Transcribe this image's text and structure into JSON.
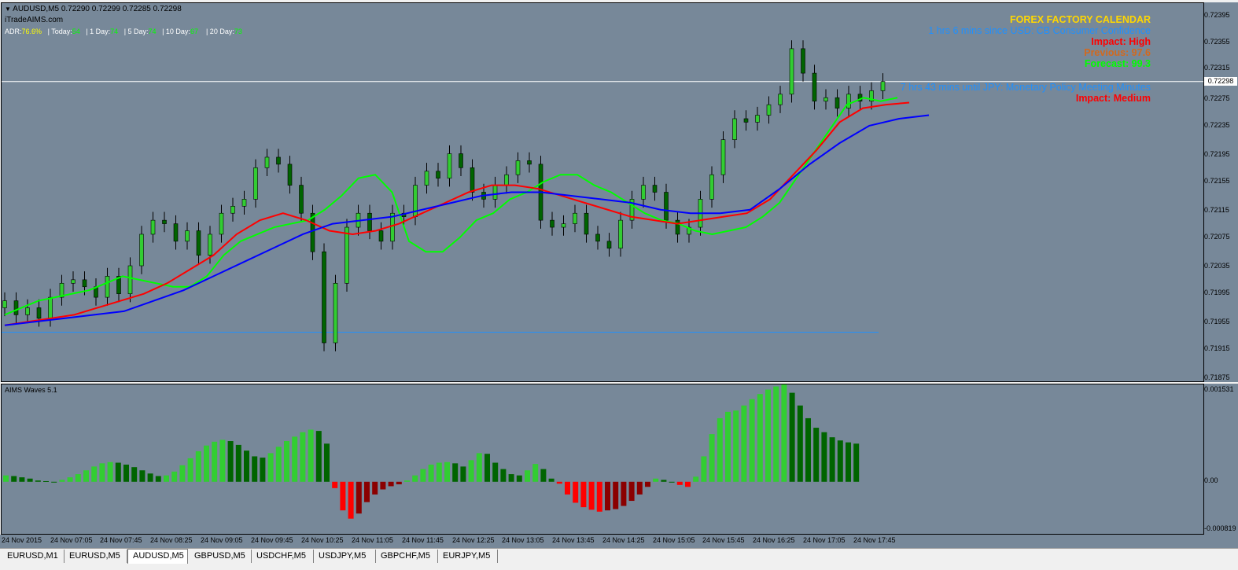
{
  "symbol_header": {
    "symbol": "AUDUSD,M5",
    "ohlc": "0.72290 0.72299 0.72285 0.72298",
    "site": "iTradeAIMS.com"
  },
  "adr": {
    "adr_label": "ADR:",
    "adr_value": "76.6%",
    "today_label": "| Today:",
    "today_value": "54",
    "d1_label": "| 1 Day:",
    "d1_value": "74",
    "d5_label": "| 5 Day:",
    "d5_value": "74",
    "d10_label": "| 10 Day:",
    "d10_value": "67",
    "d20_label": "| 20 Day:",
    "d20_value": "73"
  },
  "calendar": {
    "title": "FOREX FACTORY CALENDAR",
    "event1": "1 hrs 6 mins since USD: CB Consumer Confidence",
    "impact1": "Impact: High",
    "previous1": "Previous: 97.6",
    "forecast1": "Forecast: 99.3",
    "event2": "7 hrs 43 mins until JPY: Monetary Policy Meeting Minutes",
    "impact2": "Impact: Medium"
  },
  "colors": {
    "chart_bg": "#778899",
    "bull_bar": "#32cd32",
    "bear_bar": "#006400",
    "neg_bar": "#ff0000",
    "neg_bar_dark": "#8b0000",
    "ema_fast": "#00ff00",
    "ema_mid": "#ff0000",
    "ema_slow": "#0000ff",
    "calendar_title": "#ffd700",
    "calendar_event": "#1e90ff",
    "impact_high": "#ff0000",
    "previous": "#d2691e",
    "forecast": "#00ff00"
  },
  "indicator": {
    "name": "AIMS Waves 5.1"
  },
  "current_price": "0.72298",
  "price_axis": [
    "0.72395",
    "0.72355",
    "0.72315",
    "0.72275",
    "0.72235",
    "0.72195",
    "0.72155",
    "0.72115",
    "0.72075",
    "0.72035",
    "0.71995",
    "0.71955",
    "0.71915",
    "0.71875"
  ],
  "indicator_axis": [
    "0.001531",
    "0.00",
    "-0.000819"
  ],
  "time_axis": [
    "24 Nov 2015",
    "24 Nov 07:05",
    "24 Nov 07:45",
    "24 Nov 08:25",
    "24 Nov 09:05",
    "24 Nov 09:45",
    "24 Nov 10:25",
    "24 Nov 11:05",
    "24 Nov 11:45",
    "24 Nov 12:25",
    "24 Nov 13:05",
    "24 Nov 13:45",
    "24 Nov 14:25",
    "24 Nov 15:05",
    "24 Nov 15:45",
    "24 Nov 16:25",
    "24 Nov 17:05",
    "24 Nov 17:45"
  ],
  "tabs": [
    "EURUSD,M1",
    "EURUSD,M5",
    "AUDUSD,M5",
    "GBPUSD,M5",
    "USDCHF,M5",
    "USDJPY,M5",
    "GBPCHF,M5",
    "EURJPY,M5"
  ],
  "active_tab": "AUDUSD,M5",
  "chart_data": {
    "type": "candlestick",
    "symbol": "AUDUSD",
    "timeframe": "M5",
    "ylim": [
      0.7187,
      0.7241
    ],
    "close_path": [
      0.71985,
      0.71965,
      0.71975,
      0.7196,
      0.7199,
      0.7201,
      0.72015,
      0.72005,
      0.7199,
      0.7202,
      0.71995,
      0.72035,
      0.7208,
      0.721,
      0.72095,
      0.7207,
      0.72085,
      0.7205,
      0.7208,
      0.7211,
      0.7212,
      0.7213,
      0.72175,
      0.7219,
      0.7218,
      0.7215,
      0.7211,
      0.72055,
      0.71925,
      0.7201,
      0.7209,
      0.7211,
      0.72085,
      0.7207,
      0.7211,
      0.72105,
      0.7215,
      0.7217,
      0.7216,
      0.72195,
      0.72175,
      0.7214,
      0.7213,
      0.7215,
      0.72165,
      0.72185,
      0.7218,
      0.721,
      0.7209,
      0.72095,
      0.7211,
      0.7208,
      0.7207,
      0.7206,
      0.721,
      0.7213,
      0.7215,
      0.7214,
      0.721,
      0.7208,
      0.7209,
      0.7213,
      0.72165,
      0.72215,
      0.72245,
      0.7224,
      0.7225,
      0.72265,
      0.7228,
      0.72345,
      0.7231,
      0.7227,
      0.72275,
      0.7226,
      0.7228,
      0.7227,
      0.72285,
      0.72298
    ],
    "ema_fast": [
      0.71965,
      0.71975,
      0.71985,
      0.7199,
      0.71995,
      0.72,
      0.7201,
      0.7202,
      0.72015,
      0.7201,
      0.72005,
      0.72005,
      0.7202,
      0.7205,
      0.7207,
      0.7208,
      0.7209,
      0.72095,
      0.721,
      0.72115,
      0.72135,
      0.7216,
      0.72165,
      0.7214,
      0.7207,
      0.72055,
      0.72055,
      0.72075,
      0.721,
      0.7211,
      0.7213,
      0.7214,
      0.72155,
      0.72165,
      0.72165,
      0.7215,
      0.7214,
      0.72125,
      0.7211,
      0.721,
      0.72095,
      0.72085,
      0.7208,
      0.72085,
      0.7209,
      0.72105,
      0.72125,
      0.7216,
      0.72195,
      0.7223,
      0.72265,
      0.72275,
      0.7227,
      0.72275
    ],
    "ema_mid": [
      0.7195,
      0.71955,
      0.7196,
      0.71965,
      0.71975,
      0.71985,
      0.71995,
      0.7201,
      0.7203,
      0.7205,
      0.7208,
      0.721,
      0.7211,
      0.721,
      0.72085,
      0.7208,
      0.72085,
      0.72095,
      0.7211,
      0.72125,
      0.7214,
      0.7215,
      0.7215,
      0.72145,
      0.72135,
      0.72125,
      0.72115,
      0.72105,
      0.721,
      0.72095,
      0.721,
      0.72105,
      0.7211,
      0.7213,
      0.72165,
      0.722,
      0.7224,
      0.7226,
      0.72265,
      0.72268
    ],
    "ema_slow": [
      0.7195,
      0.71955,
      0.7196,
      0.71965,
      0.7197,
      0.71985,
      0.72,
      0.7202,
      0.7204,
      0.7206,
      0.7208,
      0.72095,
      0.721,
      0.72105,
      0.72115,
      0.72125,
      0.72135,
      0.7214,
      0.7214,
      0.72135,
      0.7213,
      0.72125,
      0.72115,
      0.7211,
      0.7211,
      0.72115,
      0.72145,
      0.7218,
      0.7221,
      0.72235,
      0.72245,
      0.7225
    ],
    "indicator_series": {
      "name": "AIMS Waves 5.1",
      "values": [
        0.0001,
        9e-05,
        7e-05,
        5e-05,
        2e-05,
        1e-05,
        0.0,
        3e-05,
        7e-05,
        0.00012,
        0.00018,
        0.00024,
        0.00029,
        0.00031,
        0.0003,
        0.00027,
        0.00023,
        0.00018,
        0.00013,
        9e-05,
        0.0001,
        0.00016,
        0.00026,
        0.00037,
        0.00048,
        0.00057,
        0.00063,
        0.00066,
        0.00064,
        0.00058,
        0.00049,
        0.0004,
        0.00038,
        0.00045,
        0.00055,
        0.00064,
        0.00071,
        0.00078,
        0.00082,
        0.0008,
        0.0006,
        -0.0001,
        -0.00045,
        -0.00058,
        -0.0005,
        -0.00032,
        -0.0002,
        -0.00012,
        -7e-05,
        -4e-05,
        2e-05,
        0.0001,
        0.0002,
        0.00027,
        0.0003,
        0.00031,
        0.00029,
        0.00024,
        0.00034,
        0.00045,
        0.00044,
        0.0003,
        0.0002,
        0.00012,
        0.0001,
        0.00018,
        0.00028,
        0.0002,
        5e-05,
        -3e-05,
        -0.0002,
        -0.00033,
        -0.0004,
        -0.00044,
        -0.00047,
        -0.00045,
        -0.00043,
        -0.00038,
        -0.0003,
        -0.0002,
        -8e-05,
        5e-05,
        3e-05,
        0.0,
        -5e-05,
        -8e-05,
        8e-05,
        0.0004,
        0.00075,
        0.001,
        0.0011,
        0.00112,
        0.0012,
        0.0013,
        0.00138,
        0.00145,
        0.0015,
        0.00153,
        0.0014,
        0.0012,
        0.001,
        0.00085,
        0.00078,
        0.0007,
        0.00065,
        0.00062,
        0.0006
      ]
    }
  }
}
